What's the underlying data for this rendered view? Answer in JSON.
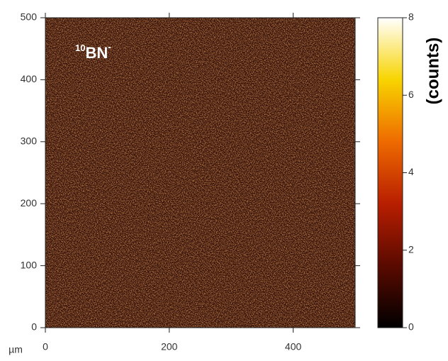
{
  "chart_data": {
    "type": "heatmap",
    "title": {
      "superscript": "10",
      "main": "BN",
      "charge": "-"
    },
    "x_unit_label": "µm",
    "colorbar_label": "(counts)",
    "xlim": [
      0,
      500
    ],
    "xticks": [
      0,
      200,
      400
    ],
    "ylim": [
      0,
      500
    ],
    "yticks": [
      0,
      100,
      200,
      300,
      400,
      500
    ],
    "clim": [
      0,
      8
    ],
    "cticks": [
      0,
      2,
      4,
      6,
      8
    ],
    "colormap": [
      "#000000",
      "#5a0a00",
      "#b81e00",
      "#ee6a00",
      "#f8d400",
      "#ffffff"
    ]
  }
}
